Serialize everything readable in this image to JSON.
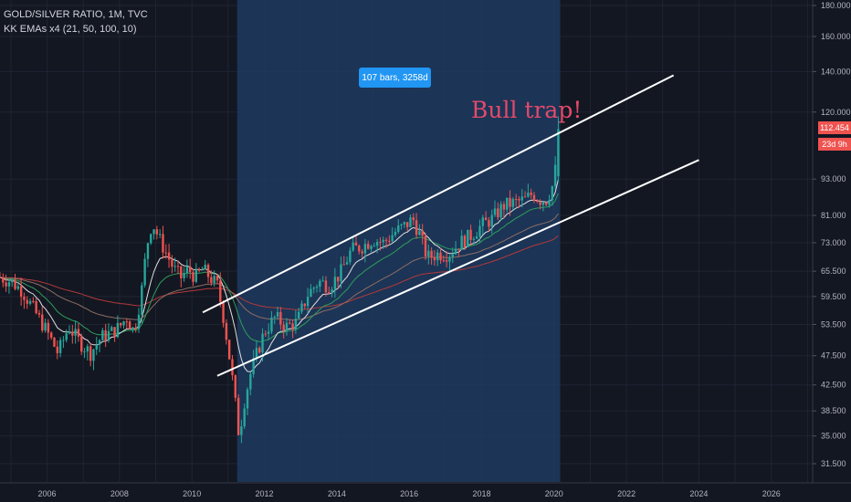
{
  "chart_data": {
    "type": "candlestick",
    "symbol": "GOLD/SILVER RATIO, 1M, TVC",
    "indicator": "KK EMAs x4 (21, 50, 100, 10)",
    "range_label": "107 bars, 3258d",
    "annotation": "Bull trap!",
    "last_price": "112.454",
    "countdown": "23d 9h",
    "y_scale": "log",
    "ylim": [
      31.5,
      180
    ],
    "xlim": [
      2004.7,
      2028.2
    ],
    "x_ticks": [
      "2006",
      "2008",
      "2010",
      "2012",
      "2014",
      "2016",
      "2018",
      "2020",
      "2022",
      "2024",
      "2026"
    ],
    "y_ticks": [
      "180.000",
      "160.000",
      "140.000",
      "120.000",
      "93.000",
      "81.000",
      "73.000",
      "65.500",
      "59.500",
      "53.500",
      "47.500",
      "42.500",
      "38.500",
      "35.000",
      "31.500"
    ],
    "highlight_range": [
      2011.25,
      2020.17
    ],
    "channel_upper": [
      [
        2010.3,
        56
      ],
      [
        2023.3,
        138
      ]
    ],
    "channel_lower": [
      [
        2010.7,
        44
      ],
      [
        2024.0,
        100
      ]
    ],
    "closes": [
      {
        "t": 2004.7,
        "c": 64
      },
      {
        "t": 2005.0,
        "c": 63
      },
      {
        "t": 2005.3,
        "c": 61
      },
      {
        "t": 2005.6,
        "c": 57
      },
      {
        "t": 2006.0,
        "c": 52
      },
      {
        "t": 2006.3,
        "c": 48
      },
      {
        "t": 2006.6,
        "c": 53
      },
      {
        "t": 2006.9,
        "c": 50
      },
      {
        "t": 2007.2,
        "c": 48
      },
      {
        "t": 2007.5,
        "c": 51
      },
      {
        "t": 2007.8,
        "c": 52
      },
      {
        "t": 2008.0,
        "c": 53
      },
      {
        "t": 2008.2,
        "c": 55
      },
      {
        "t": 2008.4,
        "c": 52
      },
      {
        "t": 2008.6,
        "c": 60
      },
      {
        "t": 2008.75,
        "c": 72
      },
      {
        "t": 2008.9,
        "c": 79
      },
      {
        "t": 2009.1,
        "c": 74
      },
      {
        "t": 2009.3,
        "c": 70
      },
      {
        "t": 2009.5,
        "c": 66
      },
      {
        "t": 2009.7,
        "c": 64
      },
      {
        "t": 2009.9,
        "c": 66
      },
      {
        "t": 2010.1,
        "c": 64
      },
      {
        "t": 2010.3,
        "c": 66
      },
      {
        "t": 2010.5,
        "c": 64
      },
      {
        "t": 2010.7,
        "c": 62
      },
      {
        "t": 2010.85,
        "c": 56
      },
      {
        "t": 2011.0,
        "c": 49
      },
      {
        "t": 2011.15,
        "c": 42
      },
      {
        "t": 2011.3,
        "c": 35
      },
      {
        "t": 2011.45,
        "c": 40
      },
      {
        "t": 2011.6,
        "c": 44
      },
      {
        "t": 2011.8,
        "c": 48
      },
      {
        "t": 2012.0,
        "c": 52
      },
      {
        "t": 2012.3,
        "c": 55
      },
      {
        "t": 2012.6,
        "c": 53
      },
      {
        "t": 2012.9,
        "c": 54
      },
      {
        "t": 2013.2,
        "c": 60
      },
      {
        "t": 2013.5,
        "c": 63
      },
      {
        "t": 2013.8,
        "c": 62
      },
      {
        "t": 2014.1,
        "c": 65
      },
      {
        "t": 2014.4,
        "c": 71
      },
      {
        "t": 2014.7,
        "c": 72
      },
      {
        "t": 2015.0,
        "c": 74
      },
      {
        "t": 2015.3,
        "c": 73
      },
      {
        "t": 2015.6,
        "c": 76
      },
      {
        "t": 2015.9,
        "c": 78
      },
      {
        "t": 2016.1,
        "c": 80
      },
      {
        "t": 2016.3,
        "c": 75
      },
      {
        "t": 2016.5,
        "c": 69
      },
      {
        "t": 2016.8,
        "c": 70
      },
      {
        "t": 2017.1,
        "c": 70
      },
      {
        "t": 2017.4,
        "c": 73
      },
      {
        "t": 2017.7,
        "c": 75
      },
      {
        "t": 2018.0,
        "c": 78
      },
      {
        "t": 2018.3,
        "c": 80
      },
      {
        "t": 2018.6,
        "c": 84
      },
      {
        "t": 2018.9,
        "c": 85
      },
      {
        "t": 2019.2,
        "c": 86
      },
      {
        "t": 2019.4,
        "c": 88
      },
      {
        "t": 2019.6,
        "c": 86
      },
      {
        "t": 2019.8,
        "c": 86
      },
      {
        "t": 2020.0,
        "c": 92
      },
      {
        "t": 2020.15,
        "c": 112.454
      }
    ]
  }
}
